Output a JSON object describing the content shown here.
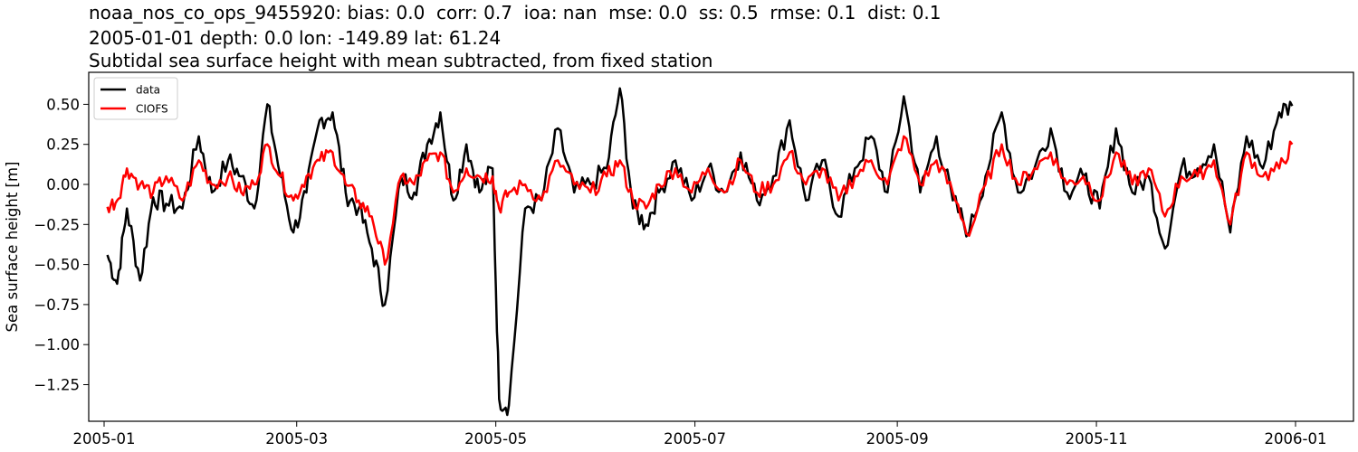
{
  "header": {
    "line1": "noaa_nos_co_ops_9455920: bias: 0.0  corr: 0.7  ioa: nan  mse: 0.0  ss: 0.5  rmse: 0.1  dist: 0.1",
    "line2": "2005-01-01 depth: 0.0 lon: -149.89 lat: 61.24",
    "line3": "Subtidal sea surface height with mean subtracted, from fixed station"
  },
  "colors": {
    "data": "#000000",
    "model": "#ff0000"
  },
  "chart_data": {
    "type": "line",
    "title": "noaa_nos_co_ops_9455920: bias: 0.0  corr: 0.7  ioa: nan  mse: 0.0  ss: 0.5  rmse: 0.1  dist: 0.1 / 2005-01-01 depth: 0.0 lon: -149.89 lat: 61.24 / Subtidal sea surface height with mean subtracted, from fixed station",
    "xlabel": "",
    "ylabel": "Sea surface height [m]",
    "ylim": [
      -1.45,
      0.7
    ],
    "xlim": [
      "2004-12-21",
      "2006-01-13"
    ],
    "grid": false,
    "legend_position": "upper left",
    "x_ticks": [
      "2005-01",
      "2005-03",
      "2005-05",
      "2005-07",
      "2005-09",
      "2005-11",
      "2006-01"
    ],
    "y_ticks": [
      "0.50",
      "0.25",
      "0.00",
      "−0.25",
      "−0.50",
      "−0.75",
      "−1.00",
      "−1.25"
    ],
    "x": [
      "2005-01-02",
      "2005-01-05",
      "2005-01-08",
      "2005-01-12",
      "2005-01-16",
      "2005-01-20",
      "2005-01-25",
      "2005-01-30",
      "2005-02-03",
      "2005-02-08",
      "2005-02-12",
      "2005-02-16",
      "2005-02-20",
      "2005-02-24",
      "2005-02-28",
      "2005-03-04",
      "2005-03-08",
      "2005-03-12",
      "2005-03-16",
      "2005-03-20",
      "2005-03-24",
      "2005-03-28",
      "2005-04-02",
      "2005-04-06",
      "2005-04-10",
      "2005-04-14",
      "2005-04-18",
      "2005-04-22",
      "2005-04-26",
      "2005-04-30",
      "2005-05-02",
      "2005-05-05",
      "2005-05-10",
      "2005-05-15",
      "2005-05-20",
      "2005-05-25",
      "2005-05-30",
      "2005-06-04",
      "2005-06-08",
      "2005-06-12",
      "2005-06-16",
      "2005-06-20",
      "2005-06-25",
      "2005-06-30",
      "2005-07-05",
      "2005-07-10",
      "2005-07-15",
      "2005-07-20",
      "2005-07-25",
      "2005-07-30",
      "2005-08-04",
      "2005-08-09",
      "2005-08-14",
      "2005-08-19",
      "2005-08-24",
      "2005-08-29",
      "2005-09-03",
      "2005-09-08",
      "2005-09-13",
      "2005-09-18",
      "2005-09-23",
      "2005-09-28",
      "2005-10-03",
      "2005-10-08",
      "2005-10-13",
      "2005-10-18",
      "2005-10-23",
      "2005-10-28",
      "2005-11-02",
      "2005-11-07",
      "2005-11-12",
      "2005-11-17",
      "2005-11-22",
      "2005-11-27",
      "2005-12-02",
      "2005-12-07",
      "2005-12-12",
      "2005-12-17",
      "2005-12-22",
      "2005-12-27",
      "2005-12-31"
    ],
    "series": [
      {
        "name": "data",
        "color": "#000000",
        "values": [
          -0.44,
          -0.62,
          -0.15,
          -0.6,
          -0.08,
          -0.12,
          -0.15,
          0.3,
          -0.05,
          0.15,
          0.05,
          -0.15,
          0.5,
          0.05,
          -0.3,
          -0.05,
          0.4,
          0.45,
          -0.05,
          -0.15,
          -0.4,
          -0.75,
          0.05,
          -0.05,
          0.25,
          0.45,
          -0.1,
          0.25,
          -0.05,
          0.1,
          -1.34,
          -1.38,
          -0.15,
          -0.1,
          0.35,
          -0.05,
          0.0,
          0.1,
          0.6,
          -0.15,
          -0.25,
          -0.05,
          0.15,
          -0.1,
          0.1,
          -0.05,
          0.2,
          -0.1,
          0.05,
          0.4,
          -0.1,
          0.15,
          -0.2,
          0.1,
          0.3,
          -0.05,
          0.55,
          -0.05,
          0.3,
          -0.1,
          -0.3,
          0.05,
          0.45,
          -0.05,
          0.1,
          0.35,
          -0.05,
          0.05,
          -0.15,
          0.35,
          -0.05,
          0.05,
          -0.4,
          0.1,
          0.1,
          0.25,
          -0.3,
          0.3,
          0.1,
          0.45,
          0.49
        ]
      },
      {
        "name": "CIOFS",
        "color": "#ff0000",
        "values": [
          -0.14,
          -0.1,
          0.1,
          0.0,
          -0.05,
          0.05,
          -0.1,
          0.15,
          0.0,
          0.05,
          -0.05,
          0.0,
          0.25,
          0.05,
          -0.1,
          0.05,
          0.15,
          0.2,
          0.0,
          -0.1,
          -0.2,
          -0.5,
          0.05,
          0.0,
          0.15,
          0.2,
          -0.05,
          0.1,
          0.05,
          0.05,
          -0.15,
          -0.05,
          0.0,
          -0.1,
          0.15,
          0.0,
          -0.05,
          0.05,
          0.15,
          -0.1,
          -0.15,
          0.0,
          0.1,
          -0.05,
          0.1,
          -0.05,
          0.15,
          -0.05,
          0.0,
          0.2,
          0.0,
          0.1,
          -0.1,
          0.05,
          0.15,
          0.0,
          0.3,
          0.0,
          0.15,
          -0.05,
          -0.32,
          0.0,
          0.25,
          0.0,
          0.1,
          0.2,
          0.0,
          0.05,
          -0.1,
          0.2,
          0.0,
          0.1,
          -0.2,
          0.05,
          0.05,
          0.15,
          -0.25,
          0.2,
          0.05,
          0.1,
          0.25
        ]
      }
    ]
  },
  "legend": {
    "items": [
      {
        "label": "data",
        "color": "#000000"
      },
      {
        "label": "CIOFS",
        "color": "#ff0000"
      }
    ]
  }
}
